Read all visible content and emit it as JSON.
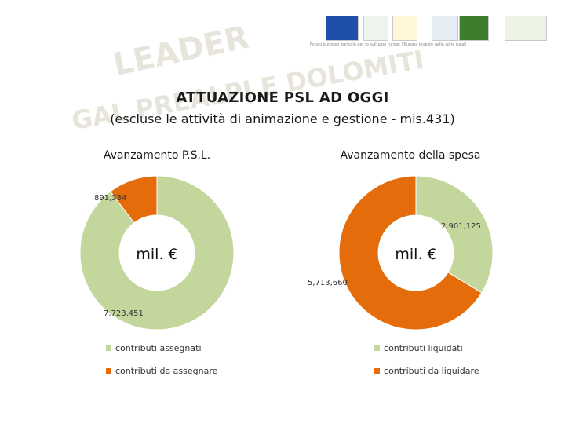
{
  "header": {
    "watermark": [
      "LEADER",
      "GAL PREALPI E DOLOMITI"
    ],
    "logo_caption": "Fondo europeo agricolo per lo sviluppo rurale: l'Europa investe nelle zone rurali"
  },
  "title": "ATTUAZIONE PSL AD OGGI",
  "subtitle": "(escluse le attività di animazione e gestione - mis.431)",
  "colors": {
    "green": "#c3d69b",
    "orange": "#e46c0a"
  },
  "chart_data": [
    {
      "type": "pie",
      "donut": true,
      "title": "Avanzamento P.S.L.",
      "center_label": "mil. €",
      "slices": [
        {
          "label": "contributi assegnati",
          "value": 7723451,
          "value_label": "7,723,451",
          "color": "#c3d69b"
        },
        {
          "label": "contributi da assegnare",
          "value": 891334,
          "value_label": "891,334",
          "color": "#e46c0a"
        }
      ],
      "legend_position": "bottom"
    },
    {
      "type": "pie",
      "donut": true,
      "title": "Avanzamento della spesa",
      "center_label": "mil. €",
      "slices": [
        {
          "label": "contributi liquidati",
          "value": 2901125,
          "value_label": "2,901,125",
          "color": "#c3d69b"
        },
        {
          "label": "contributi da liquidare",
          "value": 5713660,
          "value_label": "5,713,660",
          "color": "#e46c0a"
        }
      ],
      "legend_position": "bottom"
    }
  ]
}
